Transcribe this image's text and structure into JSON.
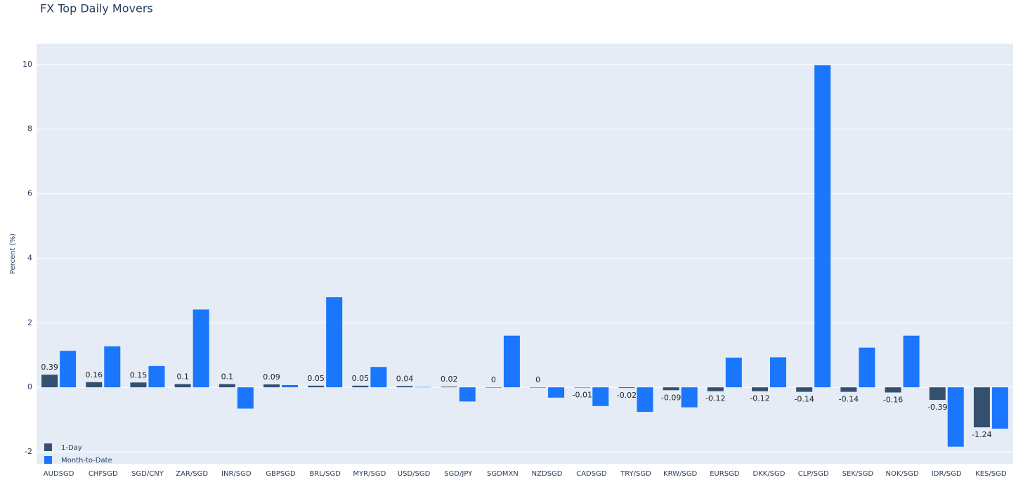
{
  "chart_data": {
    "type": "bar",
    "title": "FX Top Daily Movers",
    "y_label": "Percent (%)",
    "categories": [
      "AUDSGD",
      "CHFSGD",
      "SGD/CNY",
      "ZAR/SGD",
      "INR/SGD",
      "GBPSGD",
      "BRL/SGD",
      "MYR/SGD",
      "USD/SGD",
      "SGD/JPY",
      "SGDMXN",
      "NZDSGD",
      "CADSGD",
      "TRY/SGD",
      "KRW/SGD",
      "EURSGD",
      "DKK/SGD",
      "CLP/SGD",
      "SEK/SGD",
      "NOK/SGD",
      "IDR/SGD",
      "KES/SGD"
    ],
    "series": [
      {
        "name": "1-Day",
        "color": "#34506e",
        "show_labels": true,
        "values": [
          0.39,
          0.16,
          0.15,
          0.1,
          0.1,
          0.09,
          0.05,
          0.05,
          0.04,
          0.02,
          0,
          0,
          -0.01,
          -0.02,
          -0.09,
          -0.12,
          -0.12,
          -0.14,
          -0.14,
          -0.16,
          -0.39,
          -1.24
        ]
      },
      {
        "name": "Month-to-Date",
        "color": "#1a76fc",
        "show_labels": false,
        "values": [
          1.13,
          1.27,
          0.66,
          2.41,
          -0.66,
          0.07,
          2.79,
          0.63,
          0.01,
          -0.44,
          1.6,
          -0.32,
          -0.58,
          -0.76,
          -0.62,
          0.92,
          0.93,
          9.98,
          1.23,
          1.6,
          -1.84,
          -1.28
        ]
      }
    ],
    "ylim": [
      -2.37,
      10.65
    ],
    "yticks": [
      -2,
      0,
      2,
      4,
      6,
      8,
      10
    ],
    "grid": true,
    "legend": "bottom-left"
  }
}
